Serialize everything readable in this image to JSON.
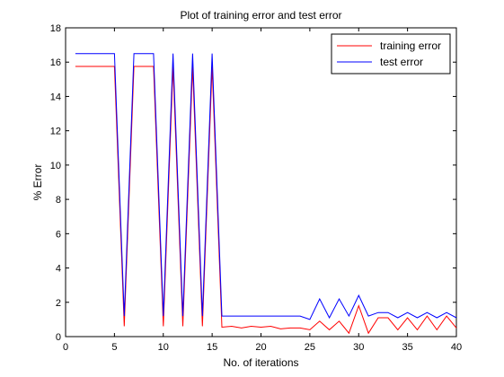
{
  "chart_data": {
    "type": "line",
    "title": "Plot of training error and test error",
    "xlabel": "No. of iterations",
    "ylabel": "% Error",
    "xlim": [
      0,
      40
    ],
    "ylim": [
      0,
      18
    ],
    "xticks": [
      0,
      5,
      10,
      15,
      20,
      25,
      30,
      35,
      40
    ],
    "yticks": [
      0,
      2,
      4,
      6,
      8,
      10,
      12,
      14,
      16,
      18
    ],
    "grid": false,
    "legend_position": "top-right",
    "x": [
      1,
      2,
      3,
      4,
      5,
      6,
      7,
      8,
      9,
      10,
      11,
      12,
      13,
      14,
      15,
      16,
      17,
      18,
      19,
      20,
      21,
      22,
      23,
      24,
      25,
      26,
      27,
      28,
      29,
      30,
      31,
      32,
      33,
      34,
      35,
      36,
      37,
      38,
      39,
      40
    ],
    "series": [
      {
        "name": "training error",
        "color": "#ff0000",
        "values": [
          15.75,
          15.75,
          15.75,
          15.75,
          15.75,
          0.6,
          15.75,
          15.75,
          15.75,
          0.6,
          15.75,
          0.6,
          15.75,
          0.6,
          15.75,
          0.55,
          0.6,
          0.5,
          0.6,
          0.55,
          0.6,
          0.45,
          0.5,
          0.5,
          0.4,
          0.9,
          0.4,
          0.9,
          0.2,
          1.8,
          0.2,
          1.1,
          1.1,
          0.4,
          1.1,
          0.4,
          1.2,
          0.4,
          1.2,
          0.5
        ]
      },
      {
        "name": "test error",
        "color": "#0000ff",
        "values": [
          16.5,
          16.5,
          16.5,
          16.5,
          16.5,
          1.2,
          16.5,
          16.5,
          16.5,
          1.2,
          16.5,
          1.2,
          16.5,
          1.2,
          16.5,
          1.2,
          1.2,
          1.2,
          1.2,
          1.2,
          1.2,
          1.2,
          1.2,
          1.2,
          1.0,
          2.2,
          1.1,
          2.2,
          1.2,
          2.4,
          1.2,
          1.4,
          1.4,
          1.1,
          1.4,
          1.1,
          1.4,
          1.1,
          1.4,
          1.1
        ]
      }
    ]
  }
}
